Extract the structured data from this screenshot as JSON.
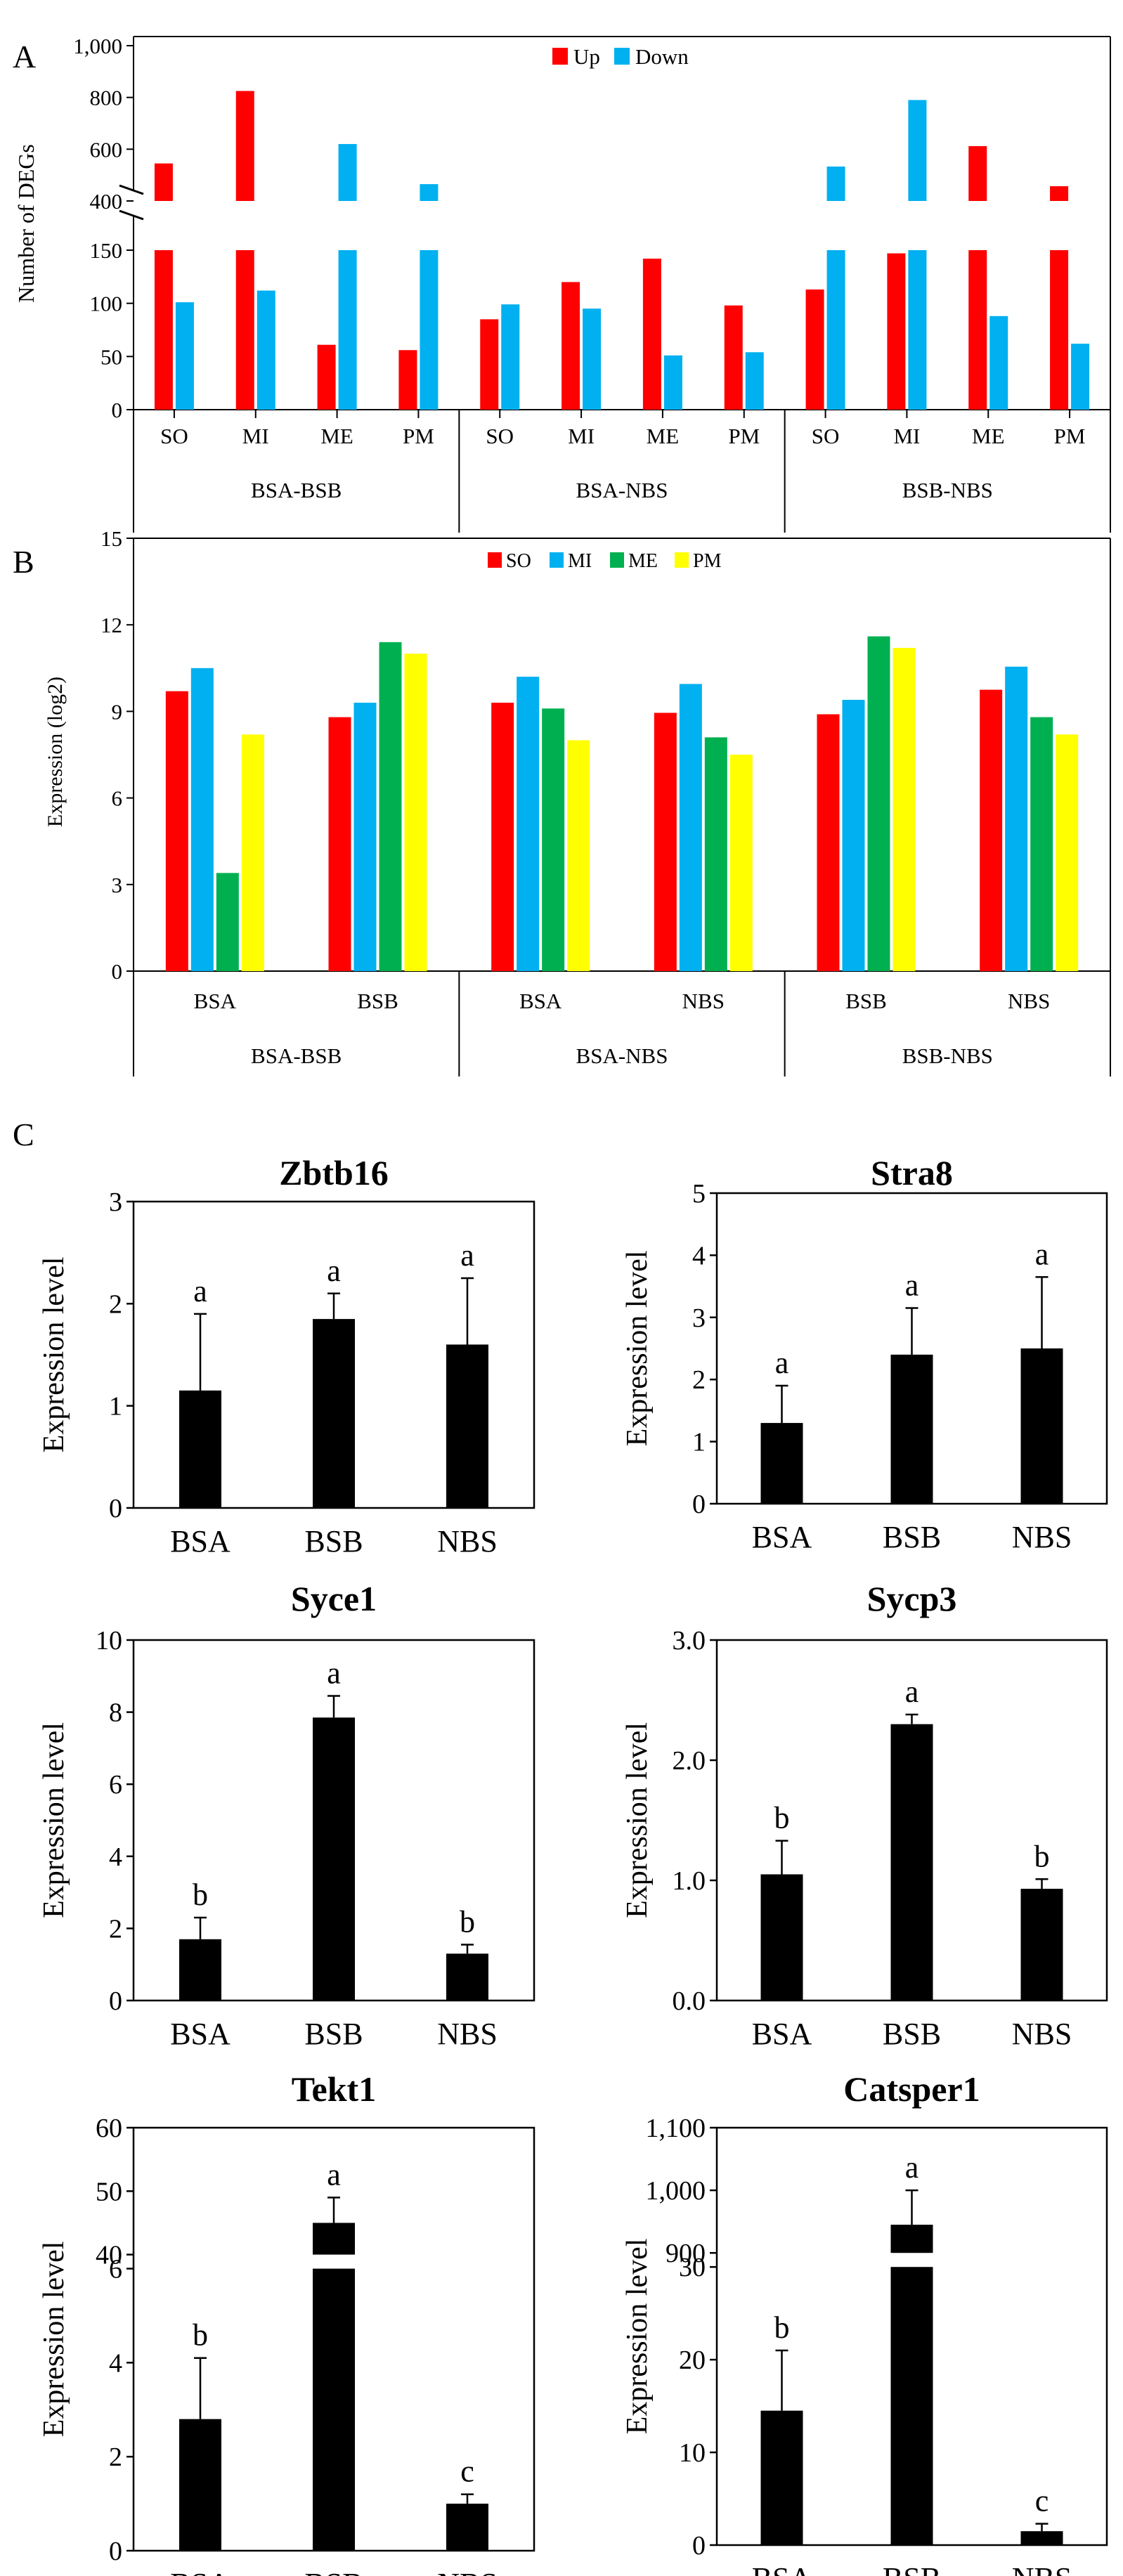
{
  "panel_labels": {
    "a": "A",
    "b": "B",
    "c": "C"
  },
  "colors": {
    "up": "#ff0000",
    "down": "#00b0f0",
    "so": "#ff0000",
    "mi": "#00b0f0",
    "me": "#00b050",
    "pm": "#ffff00",
    "bar": "#000000"
  },
  "chart_data": [
    {
      "id": "A",
      "type": "bar",
      "title": "",
      "ylabel": "Number of DEGs",
      "xlabel": "",
      "axis_break": true,
      "lower_range": [
        0,
        150
      ],
      "upper_range": [
        400,
        1000
      ],
      "lower_ticks": [
        "0",
        "50",
        "100",
        "150"
      ],
      "upper_ticks": [
        "400",
        "600",
        "800",
        "1,000"
      ],
      "groups": [
        "BSA-BSB",
        "BSA-NBS",
        "BSB-NBS"
      ],
      "categories": [
        "SO",
        "MI",
        "ME",
        "PM"
      ],
      "legend": [
        "Up",
        "Down"
      ],
      "series": [
        {
          "name": "Up",
          "values": [
            [
              545,
              825,
              61,
              56
            ],
            [
              85,
              120,
              142,
              98
            ],
            [
              113,
              147,
              612,
              457
            ]
          ]
        },
        {
          "name": "Down",
          "values": [
            [
              101,
              112,
              620,
              465
            ],
            [
              99,
              95,
              51,
              54
            ],
            [
              533,
              790,
              88,
              62
            ]
          ]
        }
      ]
    },
    {
      "id": "B",
      "type": "bar",
      "title": "",
      "ylabel": "Expression (log2)",
      "xlabel": "",
      "ylim": [
        0,
        15
      ],
      "yticks": [
        "0",
        "3",
        "6",
        "9",
        "12",
        "15"
      ],
      "legend": [
        "SO",
        "MI",
        "ME",
        "PM"
      ],
      "groups": [
        "BSA-BSB",
        "BSA-NBS",
        "BSB-NBS"
      ],
      "subgroups": [
        [
          "BSA",
          "BSB"
        ],
        [
          "BSA",
          "NBS"
        ],
        [
          "BSB",
          "NBS"
        ]
      ],
      "values": [
        [
          [
            9.7,
            10.5,
            3.4,
            8.2
          ],
          [
            8.8,
            9.3,
            11.4,
            11.0
          ]
        ],
        [
          [
            9.3,
            10.2,
            9.1,
            8.0
          ],
          [
            8.95,
            9.95,
            8.1,
            7.5
          ]
        ],
        [
          [
            8.9,
            9.4,
            11.6,
            11.2
          ],
          [
            9.75,
            10.55,
            8.8,
            8.2
          ]
        ]
      ]
    },
    {
      "id": "C1",
      "type": "bar",
      "title": "Zbtb16",
      "ylabel": "Expression level",
      "categories": [
        "BSA",
        "BSB",
        "NBS"
      ],
      "values": [
        1.15,
        1.85,
        1.6
      ],
      "errors": [
        0.75,
        0.25,
        0.65
      ],
      "letters": [
        "a",
        "a",
        "a"
      ],
      "ylim": [
        0,
        3
      ],
      "yticks": [
        "0",
        "1",
        "2",
        "3"
      ]
    },
    {
      "id": "C2",
      "type": "bar",
      "title": "Stra8",
      "ylabel": "Expression level",
      "categories": [
        "BSA",
        "BSB",
        "NBS"
      ],
      "values": [
        1.3,
        2.4,
        2.5
      ],
      "errors": [
        0.6,
        0.75,
        1.15
      ],
      "letters": [
        "a",
        "a",
        "a"
      ],
      "ylim": [
        0,
        5
      ],
      "yticks": [
        "0",
        "1",
        "2",
        "3",
        "4",
        "5"
      ]
    },
    {
      "id": "C3",
      "type": "bar",
      "title": "Syce1",
      "ylabel": "Expression level",
      "categories": [
        "BSA",
        "BSB",
        "NBS"
      ],
      "values": [
        1.7,
        7.85,
        1.3
      ],
      "errors": [
        0.6,
        0.6,
        0.25
      ],
      "letters": [
        "b",
        "a",
        "b"
      ],
      "ylim": [
        0,
        10
      ],
      "yticks": [
        "0",
        "2",
        "4",
        "6",
        "8",
        "10"
      ]
    },
    {
      "id": "C4",
      "type": "bar",
      "title": "Sycp3",
      "ylabel": "Expression level",
      "categories": [
        "BSA",
        "BSB",
        "NBS"
      ],
      "values": [
        1.05,
        2.3,
        0.93
      ],
      "errors": [
        0.28,
        0.08,
        0.08
      ],
      "letters": [
        "b",
        "a",
        "b"
      ],
      "ylim": [
        0,
        3
      ],
      "yticks": [
        "0.0",
        "1.0",
        "2.0",
        "3.0"
      ]
    },
    {
      "id": "C5",
      "type": "bar",
      "title": "Tekt1",
      "ylabel": "Expression level",
      "categories": [
        "BSA",
        "BSB",
        "NBS"
      ],
      "values": [
        2.8,
        45,
        1.0
      ],
      "errors": [
        1.3,
        4,
        0.2
      ],
      "letters": [
        "b",
        "a",
        "c"
      ],
      "axis_break": true,
      "lower_range": [
        0,
        6
      ],
      "upper_range": [
        40,
        60
      ],
      "lower_ticks": [
        "0",
        "2",
        "4",
        "6"
      ],
      "upper_ticks": [
        "40",
        "50",
        "60"
      ]
    },
    {
      "id": "C6",
      "type": "bar",
      "title": "Catsper1",
      "ylabel": "Expression level",
      "categories": [
        "BSA",
        "BSB",
        "NBS"
      ],
      "values": [
        14.5,
        945,
        1.5
      ],
      "errors": [
        6.5,
        55,
        0.8
      ],
      "letters": [
        "b",
        "a",
        "c"
      ],
      "axis_break": true,
      "lower_range": [
        0,
        30
      ],
      "upper_range": [
        900,
        1100
      ],
      "lower_ticks": [
        "0",
        "10",
        "20",
        "30"
      ],
      "upper_ticks": [
        "900",
        "1,000",
        "1,100"
      ]
    }
  ]
}
